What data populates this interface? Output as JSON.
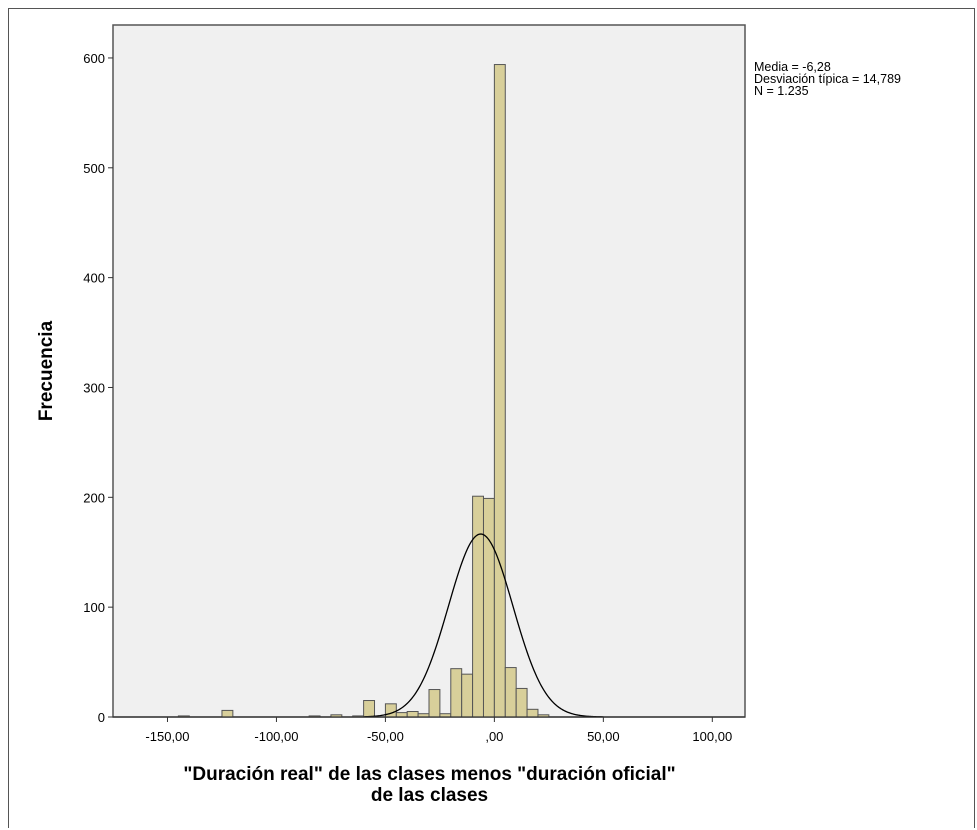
{
  "chart_data": {
    "type": "bar",
    "ylabel": "Frecuencia",
    "xlabel_line1": "\"Duración real\" de las clases  menos \"duración oficial\"",
    "xlabel_line2": "de las clases",
    "xlim": [
      -175,
      115
    ],
    "ylim": [
      0,
      630
    ],
    "x_ticks": [
      {
        "value": -150,
        "label": "-150,00"
      },
      {
        "value": -100,
        "label": "-100,00"
      },
      {
        "value": -50,
        "label": "-50,00"
      },
      {
        "value": 0,
        "label": ",00"
      },
      {
        "value": 50,
        "label": "50,00"
      },
      {
        "value": 100,
        "label": "100,00"
      }
    ],
    "y_ticks": [
      0,
      100,
      200,
      300,
      400,
      500,
      600
    ],
    "bin_width": 5,
    "bins": [
      {
        "start": -145,
        "count": 1
      },
      {
        "start": -125,
        "count": 6
      },
      {
        "start": -85,
        "count": 1
      },
      {
        "start": -75,
        "count": 2
      },
      {
        "start": -65,
        "count": 1
      },
      {
        "start": -60,
        "count": 15
      },
      {
        "start": -50,
        "count": 12
      },
      {
        "start": -45,
        "count": 4
      },
      {
        "start": -40,
        "count": 5
      },
      {
        "start": -35,
        "count": 3
      },
      {
        "start": -30,
        "count": 25
      },
      {
        "start": -25,
        "count": 3
      },
      {
        "start": -20,
        "count": 44
      },
      {
        "start": -15,
        "count": 39
      },
      {
        "start": -10,
        "count": 201
      },
      {
        "start": -5,
        "count": 199
      },
      {
        "start": 0,
        "count": 594
      },
      {
        "start": 5,
        "count": 45
      },
      {
        "start": 10,
        "count": 26
      },
      {
        "start": 15,
        "count": 7
      },
      {
        "start": 20,
        "count": 2
      }
    ],
    "normal_curve": {
      "mean": -6.28,
      "sd": 14.789,
      "n": 1235
    },
    "bar_color": "#d8cf9a",
    "bar_stroke": "#555555",
    "plot_background": "#f0f0f0",
    "legend_position": "right"
  },
  "stats": {
    "mean_label": "Media = -6,28",
    "sd_label": "Desviación típica = 14,789",
    "n_label": "N = 1.235"
  }
}
